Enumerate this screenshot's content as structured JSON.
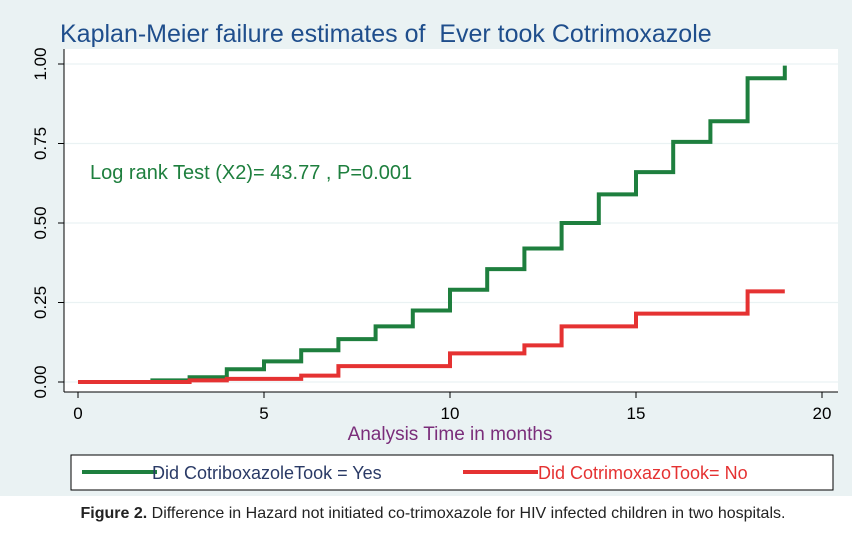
{
  "chart_data": {
    "type": "line",
    "title": "Kaplan-Meier failure estimates of  Ever took Cotrimoxazole",
    "xlabel": "Analysis Time in months",
    "ylabel": "",
    "xlim": [
      0,
      20
    ],
    "ylim": [
      0,
      1
    ],
    "xticks": [
      0,
      5,
      10,
      15,
      20
    ],
    "yticks": [
      0.0,
      0.25,
      0.5,
      0.75,
      1.0
    ],
    "ytick_labels": [
      "0.00",
      "0.25",
      "0.50",
      "0.75",
      "1.00"
    ],
    "grid": true,
    "legend_position": "bottom",
    "annotation": "Log rank Test (X2)=  43.77 , P=0.001",
    "series": [
      {
        "name": "Did CotriboxazoleTook = Yes",
        "color": "#1e7f3e",
        "step": true,
        "x": [
          0,
          2,
          3,
          4,
          5,
          6,
          7,
          8,
          9,
          10,
          11,
          12,
          13,
          14,
          15,
          16,
          17,
          18,
          19
        ],
        "y": [
          0.0,
          0.005,
          0.015,
          0.04,
          0.065,
          0.1,
          0.135,
          0.175,
          0.225,
          0.29,
          0.355,
          0.42,
          0.5,
          0.59,
          0.66,
          0.755,
          0.82,
          0.955,
          0.995
        ]
      },
      {
        "name": "Did CotrimoxazoToo​k= No",
        "color": "#e53232",
        "step": true,
        "x": [
          0,
          3,
          4,
          6,
          7,
          10,
          12,
          13,
          15,
          18,
          19
        ],
        "y": [
          0.0,
          0.005,
          0.01,
          0.02,
          0.05,
          0.09,
          0.115,
          0.175,
          0.215,
          0.285,
          0.285
        ]
      }
    ]
  },
  "caption": {
    "label": "Figure 2.",
    "text": " Difference in Hazard not initiated co-trimoxazole for HIV infected children in two hospitals."
  }
}
